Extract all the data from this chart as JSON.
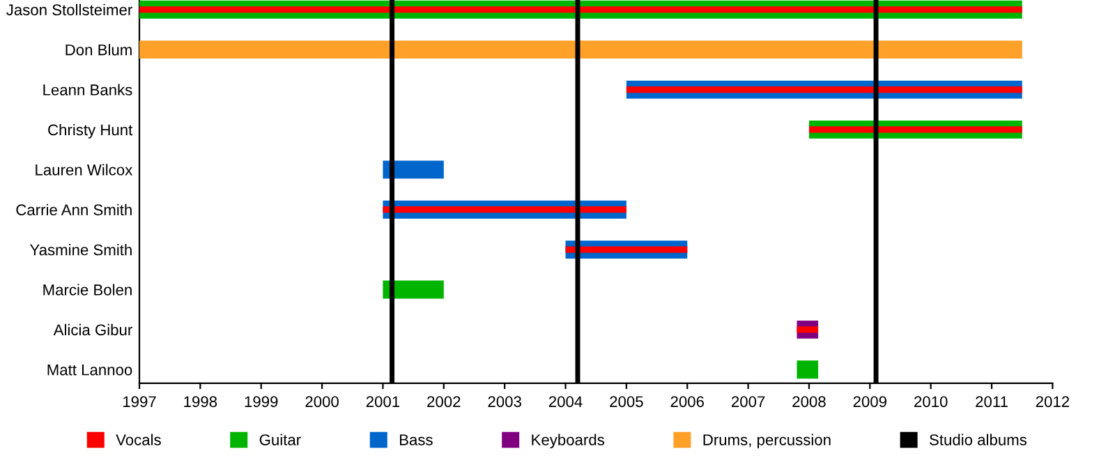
{
  "chart_data": {
    "type": "bar",
    "orientation": "horizontal",
    "categories": [
      "Jason Stollsteimer",
      "Don Blum",
      "Leann Banks",
      "Christy Hunt",
      "Lauren Wilcox",
      "Carrie Ann Smith",
      "Yasmine Smith",
      "Marcie Bolen",
      "Alicia Gibur",
      "Matt Lannoo"
    ],
    "series": [
      {
        "name": "Vocals",
        "color": "#ff0000",
        "base": [
          1997,
          null,
          2005,
          2008,
          null,
          2001,
          2004,
          null,
          2007.8,
          null
        ],
        "values": [
          14.5,
          null,
          6.5,
          3.5,
          null,
          4,
          2,
          null,
          0.35,
          null
        ]
      },
      {
        "name": "Guitar",
        "color": "#00b400",
        "base": [
          1997,
          null,
          null,
          2008,
          null,
          null,
          null,
          2001,
          null,
          2007.8
        ],
        "values": [
          14.5,
          null,
          null,
          3.5,
          null,
          null,
          null,
          1,
          null,
          0.35
        ]
      },
      {
        "name": "Bass",
        "color": "#0066cc",
        "base": [
          null,
          null,
          2005,
          null,
          2001,
          2001,
          2004,
          null,
          null,
          null
        ],
        "values": [
          null,
          null,
          6.5,
          null,
          1,
          4,
          2,
          null,
          null,
          null
        ]
      },
      {
        "name": "Keyboards",
        "color": "#800080",
        "base": [
          null,
          null,
          null,
          null,
          null,
          null,
          null,
          null,
          2007.8,
          null
        ],
        "values": [
          null,
          null,
          null,
          null,
          null,
          null,
          null,
          null,
          0.35,
          null
        ]
      },
      {
        "name": "Drums, percussion",
        "color": "#ffa028",
        "base": [
          null,
          1997,
          null,
          null,
          null,
          null,
          null,
          null,
          null,
          null
        ],
        "values": [
          null,
          14.5,
          null,
          null,
          null,
          null,
          null,
          null,
          null,
          null
        ]
      }
    ],
    "ref_lines": [
      {
        "axis": "x",
        "value": 2001.15,
        "label": "Studio albums",
        "color": "#000000"
      },
      {
        "axis": "x",
        "value": 2004.2,
        "color": "#000000"
      },
      {
        "axis": "x",
        "value": 2009.1,
        "color": "#000000"
      }
    ],
    "xlim": [
      1997,
      2012
    ],
    "xticks": [
      1997,
      1998,
      1999,
      2000,
      2001,
      2002,
      2003,
      2004,
      2005,
      2006,
      2007,
      2008,
      2009,
      2010,
      2011,
      2012
    ],
    "grid": false,
    "legend": "bottom"
  }
}
